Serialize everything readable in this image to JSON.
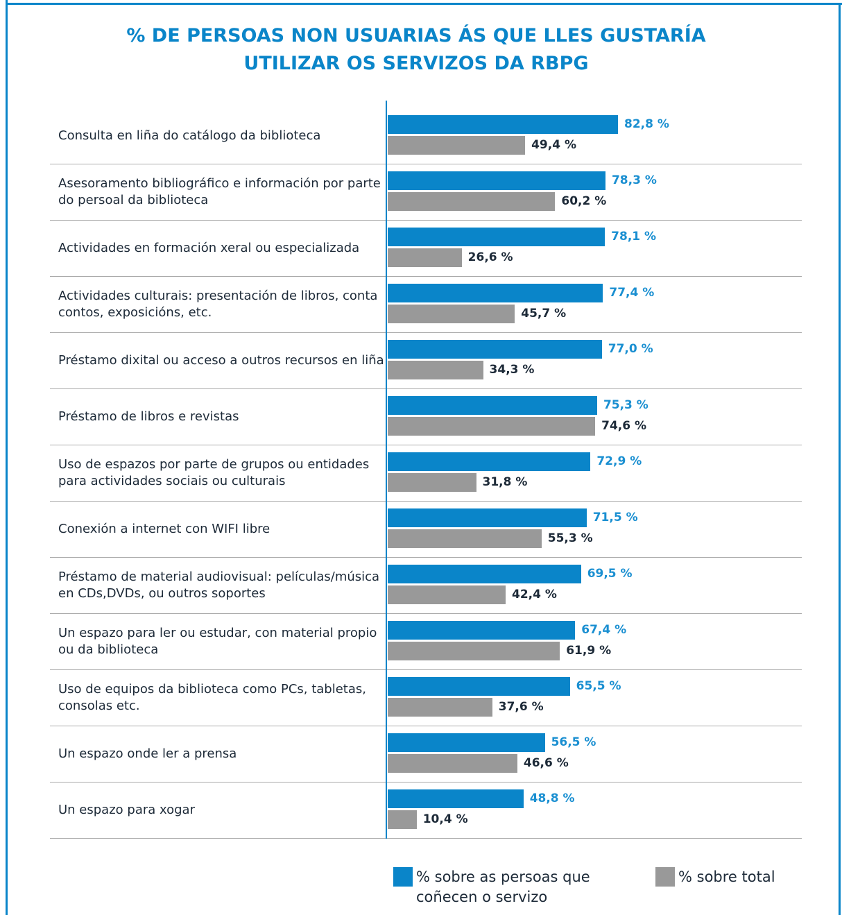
{
  "chart_data": {
    "type": "bar",
    "orientation": "horizontal",
    "title": "% DE PERSOAS NON USUARIAS ÁS QUE LLES GUSTARÍA UTILIZAR OS SERVIZOS DA RBPG",
    "categories": [
      "Consulta en liña do catálogo da biblioteca",
      "Asesoramento bibliográfico e información por parte do persoal da biblioteca",
      "Actividades en formación xeral ou especializada",
      "Actividades culturais: presentación de libros, conta contos, exposicións, etc.",
      "Préstamo dixital ou acceso a outros recursos en liña",
      "Préstamo de libros e revistas",
      "Uso de espazos por parte de grupos ou entidades para actividades sociais ou culturais",
      "Conexión a internet con WIFI libre",
      "Préstamo de material audiovisual: películas/música en CDs,DVDs, ou outros soportes",
      "Un espazo para ler ou estudar, con material propio ou da biblioteca",
      "Uso de equipos da biblioteca como PCs, tabletas, consolas etc.",
      "Un espazo onde ler a prensa",
      "Un espazo para xogar"
    ],
    "series": [
      {
        "name": "% sobre as persoas que coñecen o servizo",
        "color": "#0a85c9",
        "label_color": "#1a8fd1",
        "values": [
          82.8,
          78.3,
          78.1,
          77.4,
          77.0,
          75.3,
          72.9,
          71.5,
          69.5,
          67.4,
          65.5,
          56.5,
          48.8
        ],
        "value_labels": [
          "82,8 %",
          "78,3 %",
          "78,1 %",
          "77,4 %",
          "77,0 %",
          "75,3 %",
          "72,9 %",
          "71,5 %",
          "69,5 %",
          "67,4 %",
          "65,5 %",
          "56,5 %",
          "48,8 %"
        ]
      },
      {
        "name": "% sobre total",
        "color": "#999999",
        "label_color": "#1d2a38",
        "values": [
          49.4,
          60.2,
          26.6,
          45.7,
          34.3,
          74.6,
          31.8,
          55.3,
          42.4,
          61.9,
          37.6,
          46.6,
          10.4
        ],
        "value_labels": [
          "49,4 %",
          "60,2 %",
          "26,6 %",
          "45,7 %",
          "34,3 %",
          "74,6 %",
          "31,8 %",
          "55,3 %",
          "42,4 %",
          "61,9 %",
          "37,6 %",
          "46,6 %",
          "10,4 %"
        ]
      }
    ]
  }
}
